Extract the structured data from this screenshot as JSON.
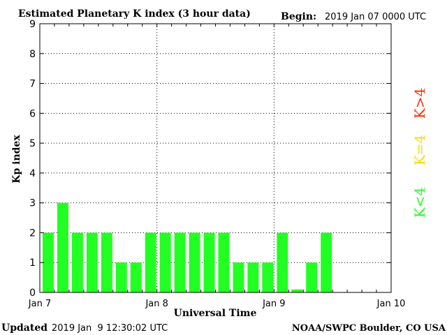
{
  "header": {
    "title": "Estimated Planetary K index (3 hour data)",
    "begin_label": "Begin:",
    "begin_value": "2019 Jan 07 0000 UTC"
  },
  "footer": {
    "updated_label": "Updated",
    "updated_value": "2019 Jan  9 12:30:02 UTC",
    "credit": "NOAA/SWPC Boulder, CO USA"
  },
  "legend": {
    "high": "K>4",
    "equal": "K=4",
    "low": "K<4"
  },
  "colors": {
    "low": "#22ff22",
    "equal": "#ffd700",
    "high": "#ff2a00",
    "axis": "#000000"
  },
  "chart_data": {
    "type": "bar",
    "title": "Estimated Planetary K index (3 hour data)",
    "xlabel": "Universal Time",
    "ylabel": "Kp index",
    "ylim": [
      0,
      9
    ],
    "yticks": [
      "0",
      "1",
      "2",
      "3",
      "4",
      "5",
      "6",
      "7",
      "8",
      "9"
    ],
    "xticks": [
      "Jan 7",
      "Jan 8",
      "Jan 9",
      "Jan 10"
    ],
    "slots_total": 24,
    "grid": "dotted",
    "series": [
      {
        "values": [
          2,
          3,
          2,
          2,
          2,
          1,
          1,
          2,
          2,
          2,
          2,
          2,
          2,
          1,
          1,
          1,
          2,
          0.1,
          1,
          2
        ]
      }
    ]
  }
}
